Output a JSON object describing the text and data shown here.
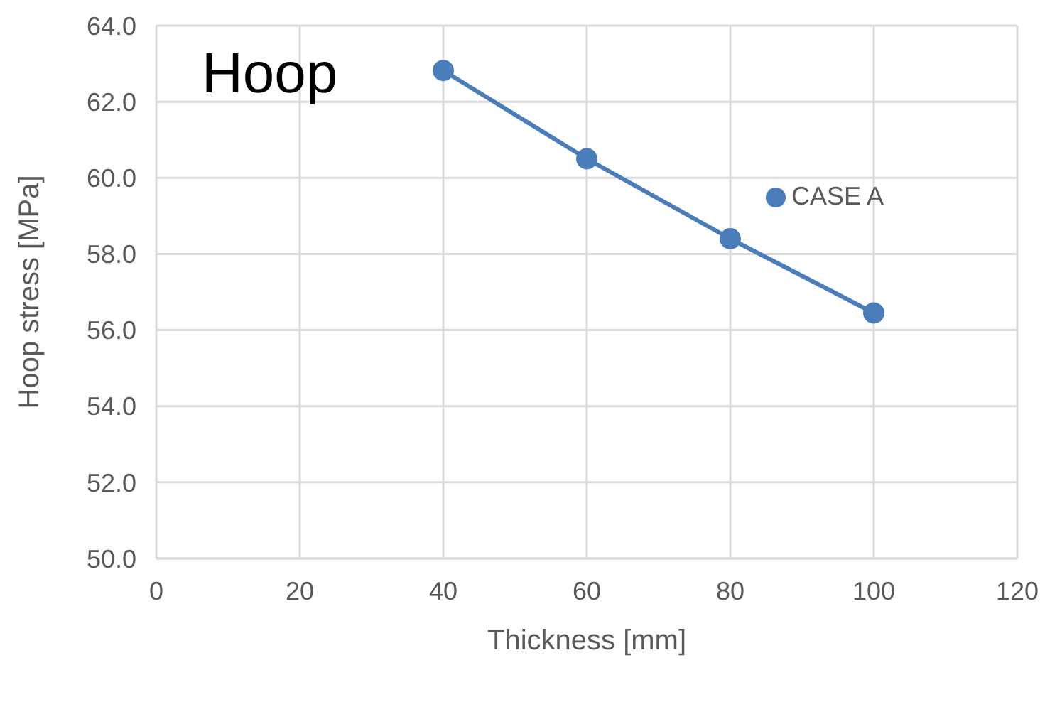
{
  "chart_data": {
    "type": "line",
    "title": "Hoop",
    "xlabel": "Thickness [mm]",
    "ylabel": "Hoop stress [MPa]",
    "x": [
      40,
      60,
      80,
      100
    ],
    "series": [
      {
        "name": "CASE A",
        "color": "#4a7ebb",
        "values": [
          62.82,
          60.5,
          58.4,
          56.45
        ]
      }
    ],
    "xlim": [
      0,
      120
    ],
    "xticks": [
      0,
      20,
      40,
      60,
      80,
      100,
      120
    ],
    "ylim": [
      50,
      64
    ],
    "yticks": [
      {
        "value": 50,
        "label": "50.0"
      },
      {
        "value": 52,
        "label": "52.0"
      },
      {
        "value": 54,
        "label": "54.0"
      },
      {
        "value": 56,
        "label": "56.0"
      },
      {
        "value": 58,
        "label": "58.0"
      },
      {
        "value": 60,
        "label": "60.0"
      },
      {
        "value": 62,
        "label": "62.0"
      },
      {
        "value": 64,
        "label": "64.0"
      }
    ],
    "grid": true,
    "legend": "top right",
    "marker": "circle",
    "line_style": "solid"
  }
}
